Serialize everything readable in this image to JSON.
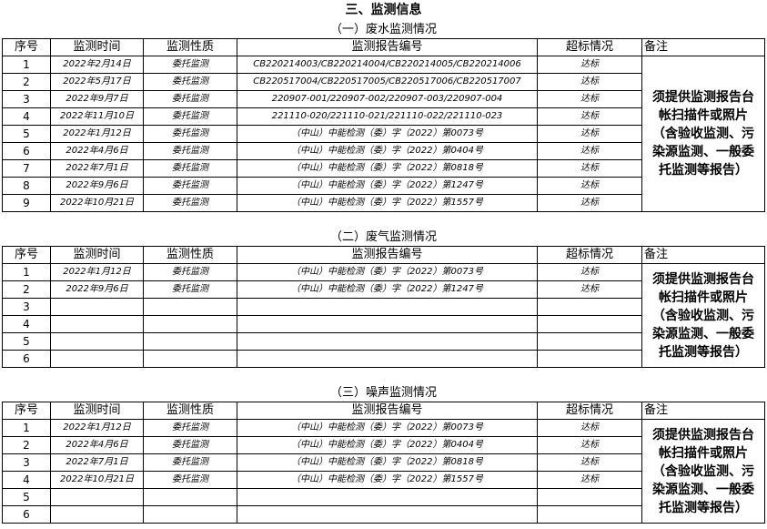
{
  "title": "三、监测信息",
  "columns": [
    "序号",
    "监测时间",
    "监测性质",
    "监测报告编号",
    "超标情况",
    "备注"
  ],
  "sections": [
    {
      "heading": "（一）废水监测情况",
      "rows": [
        [
          "1",
          "2022年2月14日",
          "委托监测",
          "CB220214003/CB220214004/CB220214005/CB220214006",
          "达标"
        ],
        [
          "2",
          "2022年5月17日",
          "委托监测",
          "CB220517004/CB220517005/CB220517006/CB220517007",
          "达标"
        ],
        [
          "3",
          "2022年9月7日",
          "委托监测",
          "220907-001/220907-002/220907-003/220907-004",
          "达标"
        ],
        [
          "4",
          "2022年11月10日",
          "委托监测",
          "221110-020/221110-021/221110-022/221110-023",
          "达标"
        ],
        [
          "5",
          "2022年1月12日",
          "委托监测",
          "（中山）中能检测（委）字（2022）第0073号",
          "达标"
        ],
        [
          "6",
          "2022年4月6日",
          "委托监测",
          "（中山）中能检测（委）字（2022）第0404号",
          "达标"
        ],
        [
          "7",
          "2022年7月1日",
          "委托监测",
          "（中山）中能检测（委）字（2022）第0818号",
          "达标"
        ],
        [
          "8",
          "2022年9月6日",
          "委托监测",
          "（中山）中能检测（委）字（2022）第1247号",
          "达标"
        ],
        [
          "9",
          "2022年10月21日",
          "委托监测",
          "（中山）中能检测（委）字（2022）第1557号",
          "达标"
        ]
      ],
      "note": "须提供监测报告台帐扫描件或照片（含验收监测、污染源监测、一般委托监测等报告）"
    },
    {
      "heading": "（二）废气监测情况",
      "rows": [
        [
          "1",
          "2022年1月12日",
          "委托监测",
          "（中山）中能检测（委）字（2022）第0073号",
          "达标"
        ],
        [
          "2",
          "2022年9月6日",
          "委托监测",
          "（中山）中能检测（委）字（2022）第1247号",
          "达标"
        ],
        [
          "3"
        ],
        [
          "4"
        ],
        [
          "5"
        ],
        [
          "6"
        ]
      ],
      "note": "须提供监测报告台帐扫描件或照片（含验收监测、污染源监测、一般委托监测等报告）"
    },
    {
      "heading": "（三）噪声监测情况",
      "rows": [
        [
          "1",
          "2022年1月12日",
          "委托监测",
          "（中山）中能检测（委）字（2022）第0073号",
          "达标"
        ],
        [
          "2",
          "2022年4月6日",
          "委托监测",
          "（中山）中能检测（委）字（2022）第0404号",
          "达标"
        ],
        [
          "3",
          "2022年7月1日",
          "委托监测",
          "（中山）中能检测（委）字（2022）第0818号",
          "达标"
        ],
        [
          "4",
          "2022年10月21日",
          "委托监测",
          "（中山）中能检测（委）字（2022）第1557号",
          "达标"
        ],
        [
          "5"
        ],
        [
          "6"
        ]
      ],
      "note": "须提供监测报告台帐扫描件或照片（含验收监测、污染源监测、一般委托监测等报告）"
    }
  ]
}
